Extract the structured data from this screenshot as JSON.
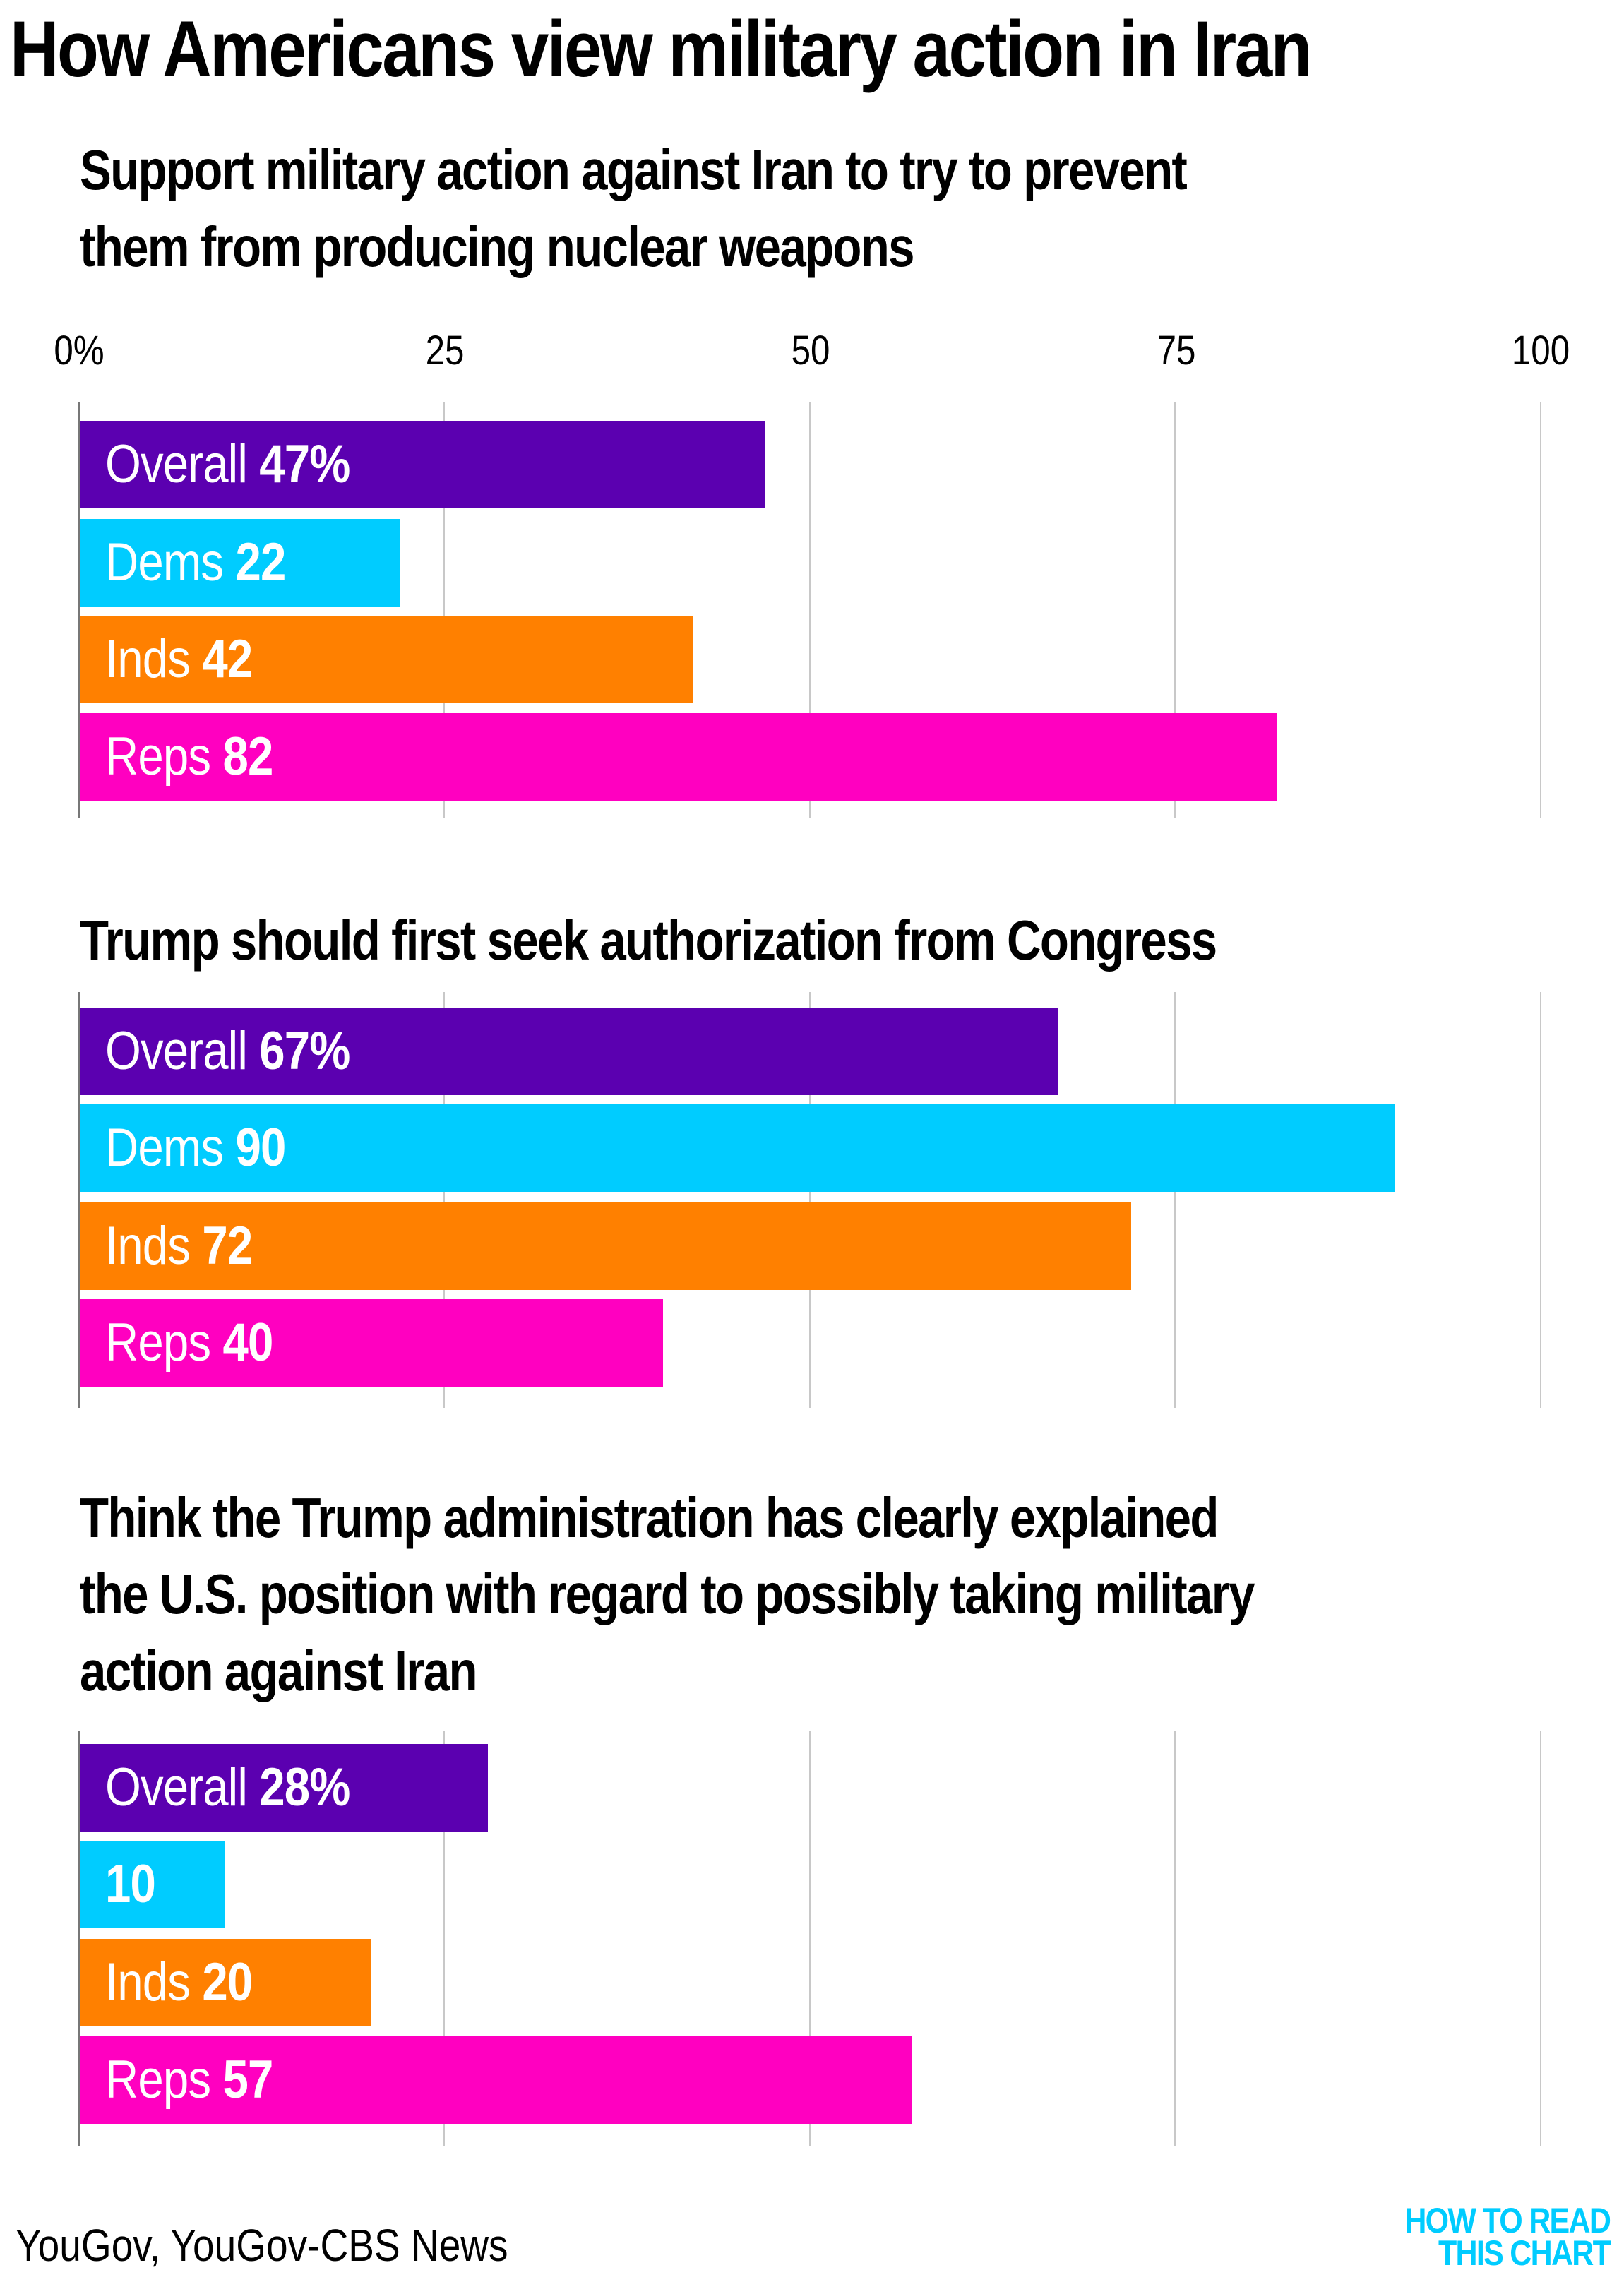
{
  "title": "How Americans view military action in Iran",
  "colors": {
    "overall": "#5B00B0",
    "dems": "#00CCFF",
    "inds": "#FF8000",
    "reps": "#FF00C0"
  },
  "chart_data": [
    {
      "type": "bar",
      "orientation": "horizontal",
      "title": "Support military action against Iran to try to prevent them from producing nuclear weapons",
      "title_lines": [
        "Support military action against Iran to try to prevent",
        "them from producing nuclear weapons"
      ],
      "categories": [
        "Overall",
        "Dems",
        "Inds",
        "Reps"
      ],
      "values": [
        47,
        22,
        42,
        82
      ],
      "value_labels": [
        "47%",
        "22",
        "42",
        "82"
      ],
      "xlim": [
        0,
        100
      ],
      "xticks": [
        0,
        25,
        50,
        75,
        100
      ],
      "xtick_labels": [
        "0%",
        "25",
        "50",
        "75",
        "100"
      ],
      "grid": true
    },
    {
      "type": "bar",
      "orientation": "horizontal",
      "title": "Trump should first seek authorization from Congress",
      "title_lines": [
        "Trump should first seek authorization from Congress"
      ],
      "categories": [
        "Overall",
        "Dems",
        "Inds",
        "Reps"
      ],
      "values": [
        67,
        90,
        72,
        40
      ],
      "value_labels": [
        "67%",
        "90",
        "72",
        "40"
      ],
      "xlim": [
        0,
        100
      ],
      "grid": true
    },
    {
      "type": "bar",
      "orientation": "horizontal",
      "title": "Think the Trump administration has clearly explained the U.S. position with regard to possibly taking military action against Iran",
      "title_lines": [
        "Think the Trump administration has clearly explained",
        "the U.S. position with regard to possibly taking military",
        "action against Iran"
      ],
      "categories": [
        "Overall",
        "",
        "Inds",
        "Reps"
      ],
      "values": [
        28,
        10,
        20,
        57
      ],
      "value_labels": [
        "28%",
        "10",
        "20",
        "57"
      ],
      "xlim": [
        0,
        100
      ],
      "grid": true
    }
  ],
  "source": "YouGov, YouGov-CBS News",
  "logo": {
    "line1": "HOW TO READ",
    "line2": "THIS CHART"
  }
}
